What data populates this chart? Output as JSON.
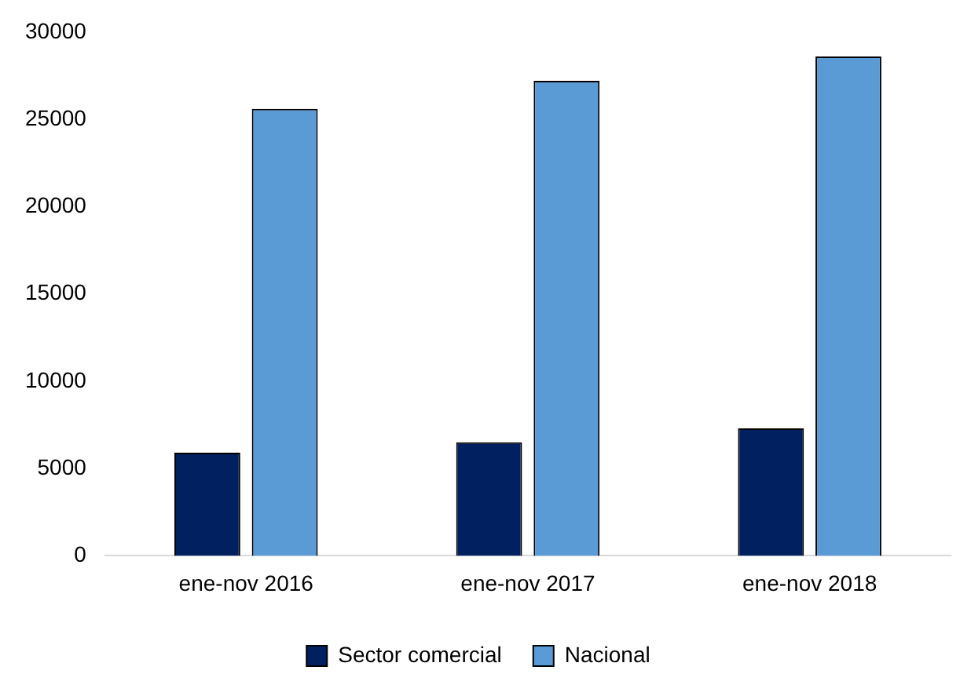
{
  "chart_data": {
    "type": "bar",
    "categories": [
      "ene-nov 2016",
      "ene-nov 2017",
      "ene-nov 2018"
    ],
    "series": [
      {
        "name": "Sector comercial",
        "color": "#002060",
        "values": [
          5900,
          6500,
          7300
        ]
      },
      {
        "name": "Nacional",
        "color": "#5b9bd5",
        "values": [
          25600,
          27200,
          28600
        ]
      }
    ],
    "ylim": [
      0,
      30000
    ],
    "yticks": [
      0,
      5000,
      10000,
      15000,
      20000,
      25000,
      30000
    ],
    "grid": false,
    "legend": "bottom"
  }
}
